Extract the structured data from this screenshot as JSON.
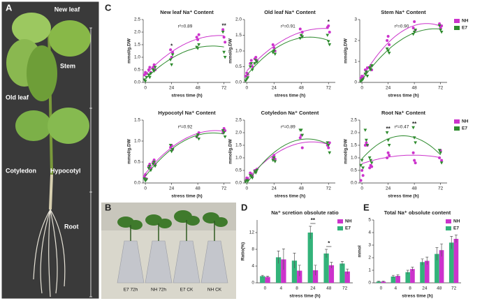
{
  "panel_labels": [
    "A",
    "B",
    "C",
    "D",
    "E"
  ],
  "photo_a": {
    "labels": [
      "New leaf",
      "Stem",
      "Old leaf",
      "Cotyledon",
      "Hypocotyl",
      "Root"
    ]
  },
  "photo_b": {
    "labels": [
      "E7  72h",
      "NH  72h",
      "E7 CK",
      "NH CK"
    ]
  },
  "chart_data": [
    {
      "type": "scatter",
      "title": "New leaf Na⁺ Content",
      "xlabel": "stress time (h)",
      "ylabel": "mmol/g.DW",
      "x": [
        0,
        0,
        0,
        4,
        4,
        4,
        8,
        8,
        8,
        24,
        24,
        24,
        48,
        48,
        48,
        72,
        72,
        72
      ],
      "xlim": [
        -2,
        78
      ],
      "xticks": [
        0,
        24,
        48,
        72
      ],
      "ylim": [
        0,
        2.5
      ],
      "yticks": [
        {
          "value": 0,
          "label": "0.0"
        },
        0.5,
        {
          "value": 1,
          "label": "1.0"
        },
        1.5,
        {
          "value": 2,
          "label": "2.0"
        },
        2.5
      ],
      "r2": "r²=0.89",
      "significance": [
        {
          "x": 24,
          "label": "*"
        },
        {
          "x": 72,
          "label": "**"
        }
      ],
      "legend": false,
      "series": [
        {
          "name": "NH",
          "color": "#cc33cc",
          "marker": "circle",
          "values": [
            0.3,
            0.4,
            0.35,
            0.5,
            0.6,
            0.4,
            0.6,
            0.7,
            0.5,
            1.3,
            1.0,
            1.2,
            1.8,
            1.7,
            1.9,
            2.1,
            1.8,
            1.6
          ]
        },
        {
          "name": "E7",
          "color": "#2e8b2e",
          "marker": "triangle-down",
          "values": [
            0.1,
            0.05,
            0.2,
            0.3,
            0.2,
            0.35,
            0.5,
            0.45,
            0.6,
            0.9,
            0.7,
            1.1,
            1.4,
            1.35,
            1.5,
            2.0,
            1.2,
            1.0
          ]
        }
      ]
    },
    {
      "type": "scatter",
      "title": "Old leaf Na⁺ Content",
      "xlabel": "stress time (h)",
      "ylabel": "mmol/g.DW",
      "x": [
        0,
        0,
        0,
        4,
        4,
        4,
        8,
        8,
        8,
        24,
        24,
        24,
        48,
        48,
        48,
        72,
        72,
        72
      ],
      "xlim": [
        -2,
        78
      ],
      "xticks": [
        0,
        24,
        48,
        72
      ],
      "ylim": [
        0,
        2
      ],
      "yticks": [
        {
          "value": 0,
          "label": "0.0"
        },
        0.5,
        {
          "value": 1,
          "label": "1.0"
        },
        1.5,
        {
          "value": 2,
          "label": "2.0"
        }
      ],
      "r2": "r²=0.91",
      "significance": [
        {
          "x": 72,
          "label": "*"
        }
      ],
      "legend": false,
      "series": [
        {
          "name": "NH",
          "color": "#cc33cc",
          "marker": "circle",
          "values": [
            0.2,
            0.3,
            0.25,
            0.6,
            0.7,
            0.5,
            0.75,
            0.8,
            0.7,
            1.2,
            1.1,
            1.0,
            1.7,
            1.5,
            1.6,
            1.75,
            1.8,
            1.6
          ]
        },
        {
          "name": "E7",
          "color": "#2e8b2e",
          "marker": "triangle-down",
          "values": [
            0.05,
            0.1,
            0.15,
            0.5,
            0.6,
            0.4,
            0.6,
            0.7,
            0.65,
            0.95,
            1.0,
            0.9,
            1.4,
            1.5,
            1.45,
            1.5,
            1.3,
            1.2
          ]
        }
      ]
    },
    {
      "type": "scatter",
      "title": "Stem Na⁺ Content",
      "xlabel": "stress time (h)",
      "ylabel": "mmol/g.DW",
      "x": [
        0,
        0,
        0,
        4,
        4,
        4,
        8,
        8,
        8,
        24,
        24,
        24,
        48,
        48,
        48,
        72,
        72,
        72
      ],
      "xlim": [
        -2,
        78
      ],
      "xticks": [
        0,
        24,
        48,
        72
      ],
      "ylim": [
        0,
        3
      ],
      "yticks": [
        0,
        1,
        2,
        3
      ],
      "r2": "r²=0.90",
      "significance": [],
      "legend": true,
      "series": [
        {
          "name": "NH",
          "color": "#cc33cc",
          "marker": "circle",
          "values": [
            0.2,
            0.3,
            0.25,
            0.6,
            0.5,
            0.7,
            0.7,
            0.8,
            0.6,
            2.0,
            2.2,
            1.8,
            2.6,
            2.9,
            2.5,
            2.8,
            2.6,
            2.7
          ]
        },
        {
          "name": "E7",
          "color": "#2e8b2e",
          "marker": "triangle-down",
          "values": [
            0.05,
            0.1,
            0.15,
            0.4,
            0.5,
            0.3,
            0.7,
            0.6,
            0.8,
            1.6,
            1.5,
            1.4,
            2.3,
            2.4,
            2.5,
            2.7,
            2.5,
            2.4
          ]
        }
      ]
    },
    {
      "type": "scatter",
      "title": "Hypocotyl Na⁺ Content",
      "xlabel": "stress time (h)",
      "ylabel": "mmol/g.DW",
      "x": [
        0,
        0,
        0,
        4,
        4,
        4,
        8,
        8,
        8,
        24,
        24,
        24,
        48,
        48,
        48,
        72,
        72,
        72
      ],
      "xlim": [
        -2,
        78
      ],
      "xticks": [
        0,
        24,
        48,
        72
      ],
      "ylim": [
        0,
        1.5
      ],
      "yticks": [
        {
          "value": 0,
          "label": "0.0"
        },
        0.5,
        {
          "value": 1,
          "label": "1.0"
        },
        1.5
      ],
      "r2": "r²=0.92",
      "significance": [],
      "legend": false,
      "series": [
        {
          "name": "NH",
          "color": "#cc33cc",
          "marker": "circle",
          "values": [
            0.15,
            0.2,
            0.1,
            0.4,
            0.45,
            0.35,
            0.5,
            0.55,
            0.45,
            0.85,
            0.9,
            0.8,
            1.1,
            1.15,
            1.2,
            1.2,
            1.3,
            1.25
          ]
        },
        {
          "name": "E7",
          "color": "#2e8b2e",
          "marker": "triangle-down",
          "values": [
            0.1,
            0.05,
            0.08,
            0.35,
            0.4,
            0.3,
            0.45,
            0.5,
            0.4,
            0.9,
            0.75,
            0.8,
            1.1,
            1.15,
            1.05,
            1.25,
            1.2,
            1.1
          ]
        }
      ]
    },
    {
      "type": "scatter",
      "title": "Cotyledon Na⁺ Content",
      "xlabel": "stress time (h)",
      "ylabel": "mmol/g.DW",
      "x": [
        0,
        0,
        0,
        4,
        4,
        4,
        8,
        8,
        8,
        24,
        24,
        24,
        48,
        48,
        48,
        72,
        72,
        72
      ],
      "xlim": [
        -2,
        78
      ],
      "xticks": [
        0,
        24,
        48,
        72
      ],
      "ylim": [
        0,
        2.5
      ],
      "yticks": [
        {
          "value": 0,
          "label": "0.0"
        },
        0.5,
        {
          "value": 1,
          "label": "1.0"
        },
        1.5,
        {
          "value": 2,
          "label": "2.0"
        },
        2.5
      ],
      "r2": "r²=0.89",
      "significance": [],
      "legend": false,
      "series": [
        {
          "name": "NH",
          "color": "#cc33cc",
          "marker": "circle",
          "values": [
            0.1,
            0.2,
            0.15,
            0.4,
            0.35,
            0.3,
            0.5,
            0.45,
            0.55,
            1.0,
            1.1,
            0.95,
            1.8,
            1.9,
            1.4,
            1.5,
            1.4,
            1.6
          ]
        },
        {
          "name": "E7",
          "color": "#2e8b2e",
          "marker": "triangle-down",
          "values": [
            0.05,
            0.1,
            0.08,
            0.3,
            0.25,
            0.2,
            0.45,
            0.4,
            0.5,
            0.9,
            1.0,
            0.85,
            2.1,
            2.1,
            1.9,
            1.6,
            1.5,
            1.2
          ]
        }
      ]
    },
    {
      "type": "scatter",
      "title": "Root Na⁺ Content",
      "xlabel": "stress time (h)",
      "ylabel": "mmol/g.DW",
      "x": [
        0,
        0,
        0,
        4,
        4,
        4,
        8,
        8,
        8,
        24,
        24,
        24,
        48,
        48,
        48,
        72,
        72,
        72
      ],
      "xlim": [
        -2,
        78
      ],
      "xticks": [
        0,
        24,
        48,
        72
      ],
      "ylim": [
        0,
        2.5
      ],
      "yticks": [
        {
          "value": 0,
          "label": "0.0"
        },
        0.5,
        {
          "value": 1,
          "label": "1.0"
        },
        1.5,
        {
          "value": 2,
          "label": "2.0"
        },
        2.5
      ],
      "r2": "r²=0.47",
      "significance": [
        {
          "x": 24,
          "label": "**"
        },
        {
          "x": 48,
          "label": "**"
        }
      ],
      "legend": true,
      "series": [
        {
          "name": "NH",
          "color": "#cc33cc",
          "marker": "circle",
          "values": [
            0.1,
            0.5,
            0.3,
            1.5,
            1.6,
            1.5,
            0.6,
            0.7,
            0.65,
            1.0,
            1.2,
            1.1,
            1.2,
            0.9,
            0.8,
            1.0,
            1.3,
            0.9
          ]
        },
        {
          "name": "E7",
          "color": "#2e8b2e",
          "marker": "triangle-down",
          "values": [
            0.7,
            0.9,
            0.6,
            2.1,
            1.7,
            1.5,
            1.0,
            0.9,
            0.8,
            2.0,
            1.7,
            1.5,
            2.2,
            1.8,
            1.6,
            1.3,
            1.2,
            0.8
          ]
        }
      ]
    },
    {
      "type": "bar",
      "title": "Na⁺ scretion obsolute ratio",
      "xlabel": "stress time (h)",
      "ylabel": "Ratio(%)",
      "categories": [
        "0",
        "4",
        "8",
        "24",
        "48",
        "72"
      ],
      "ylim": [
        0,
        15
      ],
      "yticks": [
        0,
        4,
        8,
        12
      ],
      "significance": [
        {
          "category": 3,
          "label": "**"
        },
        {
          "category": 4,
          "label": "*"
        }
      ],
      "series": [
        {
          "name": "E7",
          "color": "#33b37a",
          "values": [
            1.6,
            6.1,
            5.3,
            12,
            7,
            4.6
          ],
          "errors": [
            0.2,
            1.5,
            1.8,
            1.5,
            1.0,
            0.5
          ]
        },
        {
          "name": "NH",
          "color": "#cc33cc",
          "values": [
            1.4,
            5.6,
            2.9,
            3,
            4.2,
            2.7
          ],
          "errors": [
            0.2,
            2.5,
            1.3,
            1.2,
            0.7,
            0.6
          ]
        }
      ]
    },
    {
      "type": "bar",
      "title": "Total Na⁺ obsolute content",
      "xlabel": "stress time (h)",
      "ylabel": "mmol",
      "categories": [
        "0",
        "4",
        "8",
        "24",
        "48",
        "72"
      ],
      "ylim": [
        0,
        5
      ],
      "yticks": [
        0,
        1,
        2,
        3,
        4,
        5
      ],
      "significance": [],
      "series": [
        {
          "name": "E7",
          "color": "#33b37a",
          "values": [
            0.1,
            0.5,
            0.85,
            1.65,
            2.3,
            3.2
          ],
          "errors": [
            0.05,
            0.1,
            0.15,
            0.25,
            0.5,
            0.5
          ]
        },
        {
          "name": "NH",
          "color": "#cc33cc",
          "values": [
            0.1,
            0.55,
            1.1,
            1.75,
            2.6,
            3.5
          ],
          "errors": [
            0.05,
            0.1,
            0.15,
            0.3,
            0.5,
            0.3
          ]
        }
      ]
    }
  ]
}
